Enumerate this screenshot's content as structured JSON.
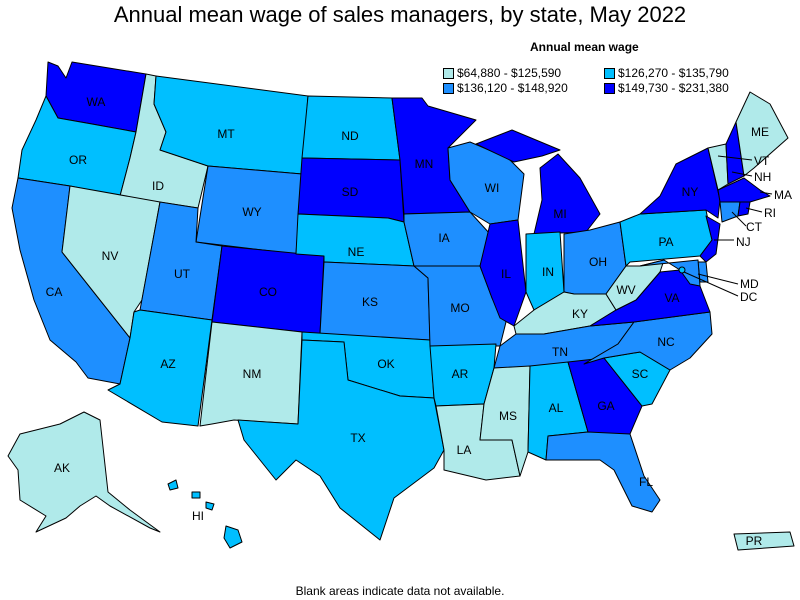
{
  "title": "Annual mean wage of sales managers, by state, May 2022",
  "legend": {
    "title": "Annual mean wage",
    "items": [
      {
        "label": "$64,880 - $125,590",
        "color": "#b0eaea"
      },
      {
        "label": "$126,270 - $135,790",
        "color": "#00bfff"
      },
      {
        "label": "$136,120 - $148,920",
        "color": "#1e8fff"
      },
      {
        "label": "$149,730 - $231,380",
        "color": "#0000ff"
      }
    ]
  },
  "footnote": "Blank areas indicate data not available.",
  "states": {
    "WA": {
      "label": "WA",
      "tier": 3
    },
    "OR": {
      "label": "OR",
      "tier": 1
    },
    "CA": {
      "label": "CA",
      "tier": 2
    },
    "ID": {
      "label": "ID",
      "tier": 0
    },
    "NV": {
      "label": "NV",
      "tier": 0
    },
    "MT": {
      "label": "MT",
      "tier": 1
    },
    "WY": {
      "label": "WY",
      "tier": 2
    },
    "UT": {
      "label": "UT",
      "tier": 2
    },
    "AZ": {
      "label": "AZ",
      "tier": 1
    },
    "CO": {
      "label": "CO",
      "tier": 3
    },
    "NM": {
      "label": "NM",
      "tier": 0
    },
    "ND": {
      "label": "ND",
      "tier": 1
    },
    "SD": {
      "label": "SD",
      "tier": 3
    },
    "NE": {
      "label": "NE",
      "tier": 1
    },
    "KS": {
      "label": "KS",
      "tier": 2
    },
    "OK": {
      "label": "OK",
      "tier": 1
    },
    "TX": {
      "label": "TX",
      "tier": 1
    },
    "MN": {
      "label": "MN",
      "tier": 3
    },
    "IA": {
      "label": "IA",
      "tier": 2
    },
    "MO": {
      "label": "MO",
      "tier": 2
    },
    "AR": {
      "label": "AR",
      "tier": 1
    },
    "LA": {
      "label": "LA",
      "tier": 0
    },
    "WI": {
      "label": "WI",
      "tier": 2
    },
    "IL": {
      "label": "IL",
      "tier": 3
    },
    "MI": {
      "label": "MI",
      "tier": 3
    },
    "IN": {
      "label": "IN",
      "tier": 1
    },
    "OH": {
      "label": "OH",
      "tier": 2
    },
    "KY": {
      "label": "KY",
      "tier": 0
    },
    "TN": {
      "label": "TN",
      "tier": 2
    },
    "MS": {
      "label": "MS",
      "tier": 0
    },
    "AL": {
      "label": "AL",
      "tier": 1
    },
    "GA": {
      "label": "GA",
      "tier": 3
    },
    "FL": {
      "label": "FL",
      "tier": 2
    },
    "SC": {
      "label": "SC",
      "tier": 1
    },
    "NC": {
      "label": "NC",
      "tier": 2
    },
    "VA": {
      "label": "VA",
      "tier": 3
    },
    "WV": {
      "label": "WV",
      "tier": 0
    },
    "PA": {
      "label": "PA",
      "tier": 1
    },
    "NY": {
      "label": "NY",
      "tier": 3
    },
    "NJ": {
      "label": "NJ",
      "tier": 3
    },
    "DE": {
      "label": "",
      "tier": 2
    },
    "MD": {
      "label": "MD",
      "tier": 2
    },
    "DC": {
      "label": "DC",
      "tier": 1
    },
    "CT": {
      "label": "CT",
      "tier": 2
    },
    "RI": {
      "label": "RI",
      "tier": 3
    },
    "MA": {
      "label": "MA",
      "tier": 3
    },
    "VT": {
      "label": "VT",
      "tier": 0
    },
    "NH": {
      "label": "NH",
      "tier": 3
    },
    "ME": {
      "label": "ME",
      "tier": 0
    },
    "AK": {
      "label": "AK",
      "tier": 0
    },
    "HI": {
      "label": "HI",
      "tier": 1
    },
    "PR": {
      "label": "PR",
      "tier": 0
    }
  }
}
